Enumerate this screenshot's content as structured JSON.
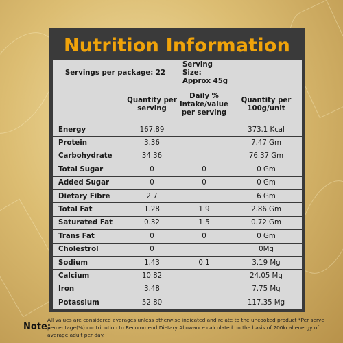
{
  "title": "Nutrition Information",
  "servings_per_package": "Servings per package: 22",
  "serving_size": "Serving Size: Approx 45g",
  "headers": {
    "col2": "Quantity per serving",
    "col3": "Daily % intake/value per serving",
    "col4": "Quantity per 100g/unit"
  },
  "rows": [
    {
      "name": "Energy",
      "per_serving": "167.89",
      "daily": "",
      "per_100g": "373.1 Kcal"
    },
    {
      "name": "Protein",
      "per_serving": "3.36",
      "daily": "",
      "per_100g": "7.47 Gm"
    },
    {
      "name": "Carbohydrate",
      "per_serving": "34.36",
      "daily": "",
      "per_100g": "76.37 Gm"
    },
    {
      "name": "Total Sugar",
      "per_serving": "0",
      "daily": "0",
      "per_100g": "0 Gm"
    },
    {
      "name": "Added Sugar",
      "per_serving": "0",
      "daily": "0",
      "per_100g": "0 Gm"
    },
    {
      "name": "Dietary Fibre",
      "per_serving": "2.7",
      "daily": "",
      "per_100g": "6 Gm"
    },
    {
      "name": "Total Fat",
      "per_serving": "1.28",
      "daily": "1.9",
      "per_100g": "2.86 Gm"
    },
    {
      "name": "Saturated Fat",
      "per_serving": "0.32",
      "daily": "1.5",
      "per_100g": "0.72 Gm"
    },
    {
      "name": "Trans Fat",
      "per_serving": "0",
      "daily": "0",
      "per_100g": "0 Gm"
    },
    {
      "name": "Cholestrol",
      "per_serving": "0",
      "daily": "",
      "per_100g": "0Mg"
    },
    {
      "name": "Sodium",
      "per_serving": "1.43",
      "daily": "0.1",
      "per_100g": "3.19 Mg"
    },
    {
      "name": "Calcium",
      "per_serving": "10.82",
      "daily": "",
      "per_100g": "24.05 Mg"
    },
    {
      "name": "Iron",
      "per_serving": "3.48",
      "daily": "",
      "per_100g": "7.75 Mg"
    },
    {
      "name": "Potassium",
      "per_serving": "52.80",
      "daily": "",
      "per_100g": "117.35 Mg"
    }
  ],
  "note_label": "Note:",
  "note_text": "All values are considered averages unless otherwise indicated and relate to the uncooked product *Per serve percentage(%) contribution to Recommend Dietary Allowance calculated on the basis of 200kcal energy of average adult per day.",
  "colors": {
    "title": "#f0a30a",
    "panel": "#3a3a3a",
    "cell": "#d9d9d9"
  }
}
